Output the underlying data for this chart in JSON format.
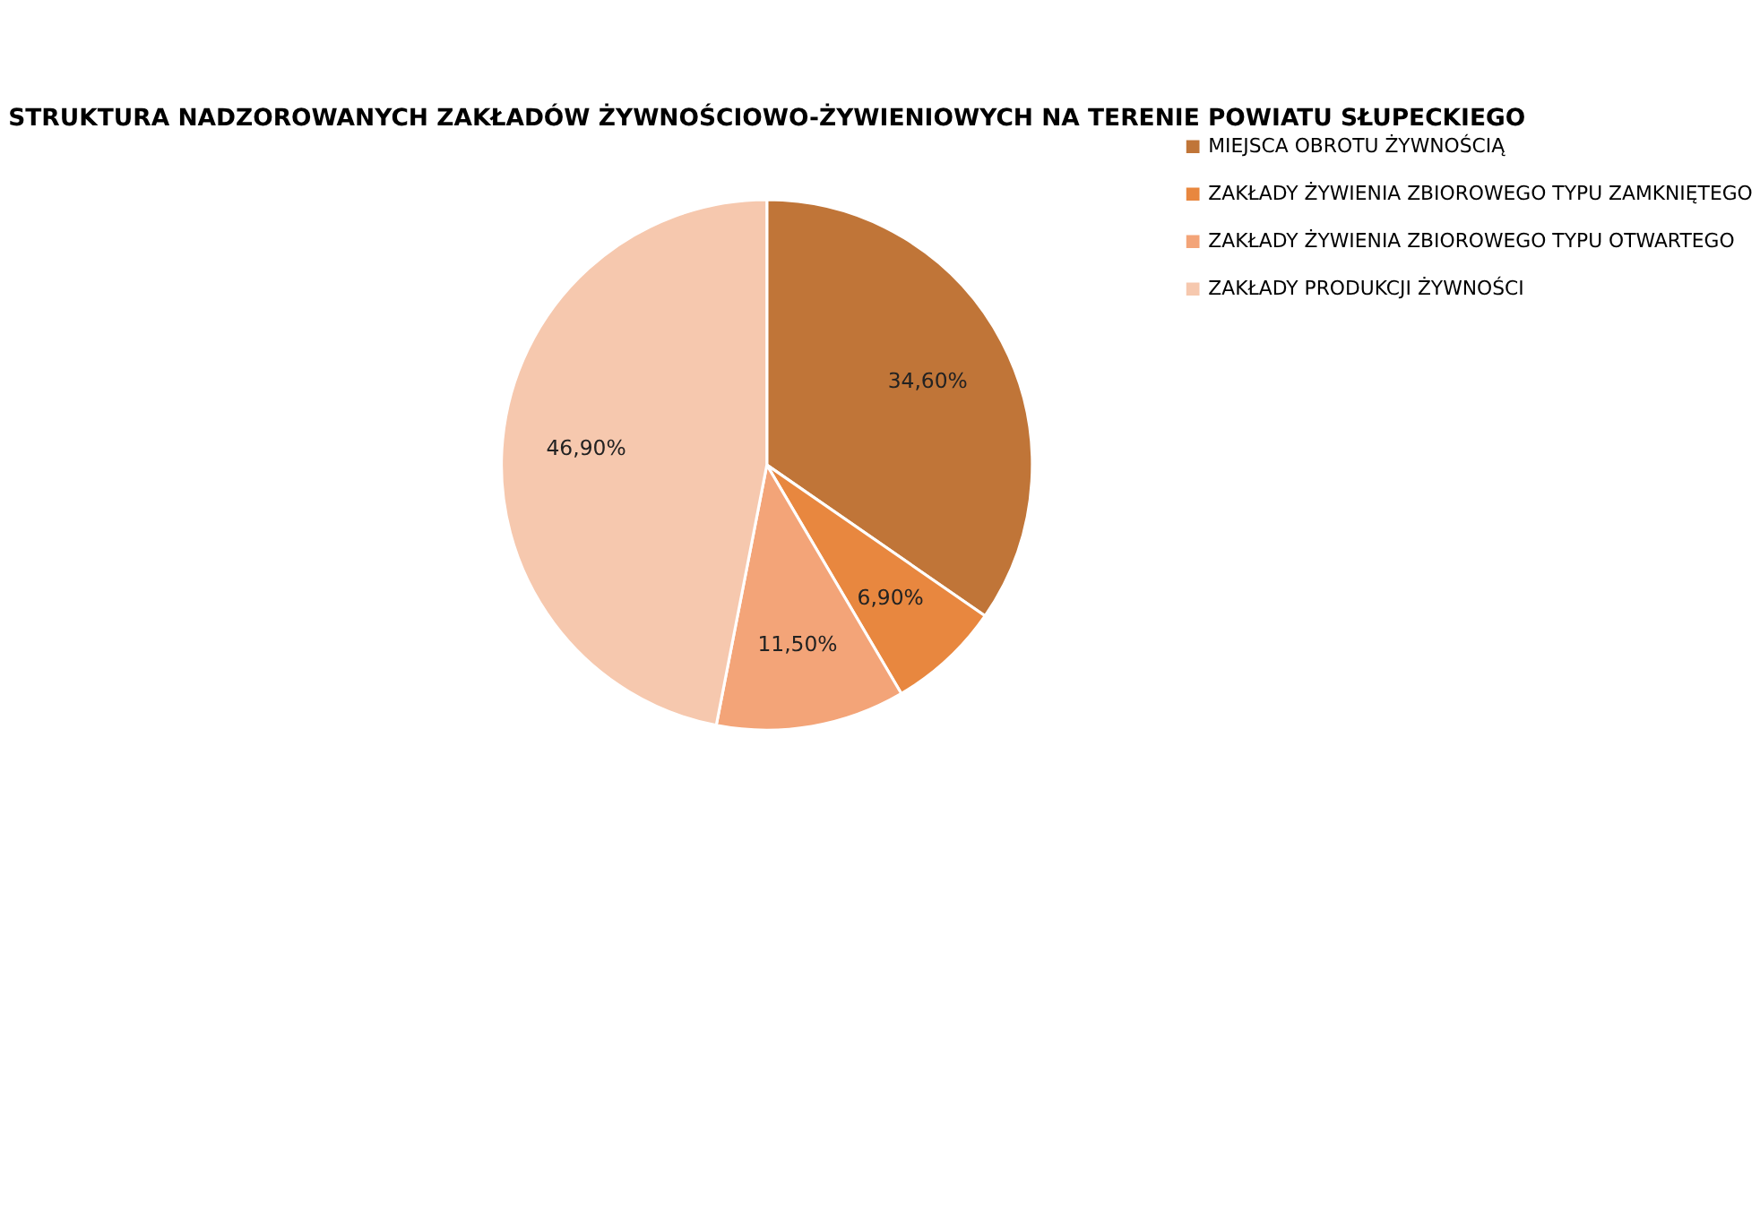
{
  "chart_data": {
    "type": "pie",
    "title": "STRUKTURA NADZOROWANYCH ZAKŁADÓW ŻYWNOŚCIOWO-ŻYWIENIOWYCH NA TERENIE POWIATU SŁUPECKIEGO",
    "categories": [
      "MIEJSCA OBROTU ŻYWNOŚCIĄ",
      "ZAKŁADY ŻYWIENIA ZBIOROWEGO TYPU ZAMKNIĘTEGO",
      "ZAKŁADY ŻYWIENIA ZBIOROWEGO TYPU OTWARTEGO",
      "ZAKŁADY PRODUKCJI ŻYWNOŚCI"
    ],
    "values": [
      34.6,
      6.9,
      11.5,
      46.9
    ],
    "colors": [
      "#c07538",
      "#e8873f",
      "#f3a478",
      "#f6c8ae"
    ],
    "value_labels": [
      "34,60%",
      "6,90%",
      "11,50%",
      "46,90%"
    ],
    "legend": "right"
  }
}
